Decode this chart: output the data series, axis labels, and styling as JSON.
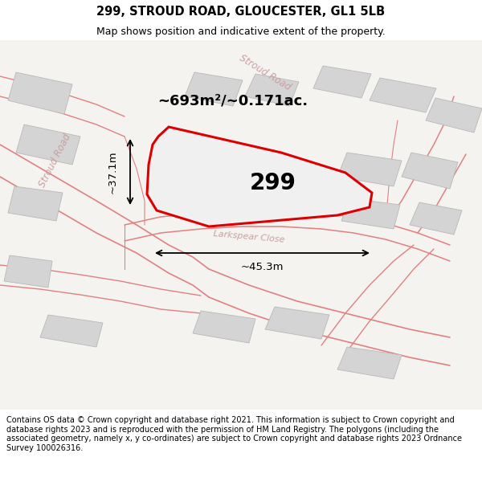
{
  "title": "299, STROUD ROAD, GLOUCESTER, GL1 5LB",
  "subtitle": "Map shows position and indicative extent of the property.",
  "footer": "Contains OS data © Crown copyright and database right 2021. This information is subject to Crown copyright and database rights 2023 and is reproduced with the permission of HM Land Registry. The polygons (including the associated geometry, namely x, y co-ordinates) are subject to Crown copyright and database rights 2023 Ordnance Survey 100026316.",
  "area_label": "~693m²/~0.171ac.",
  "number_label": "299",
  "width_label": "~45.3m",
  "height_label": "~37.1m",
  "road_label_stroud_left": "Stroud Road",
  "road_label_stroud_upper": "Stroud Road",
  "close_label": "Larkspear Close",
  "map_bg": "#f5f3f0",
  "title_bg": "#ffffff",
  "footer_bg": "#ffffff",
  "property_fill": "#f0f0f0",
  "property_edge": "#dd0000",
  "building_fill": "#d8d8d8",
  "building_edge": "#bbbbbb",
  "road_line_color": "#e08080",
  "measurement_color": "#000000"
}
